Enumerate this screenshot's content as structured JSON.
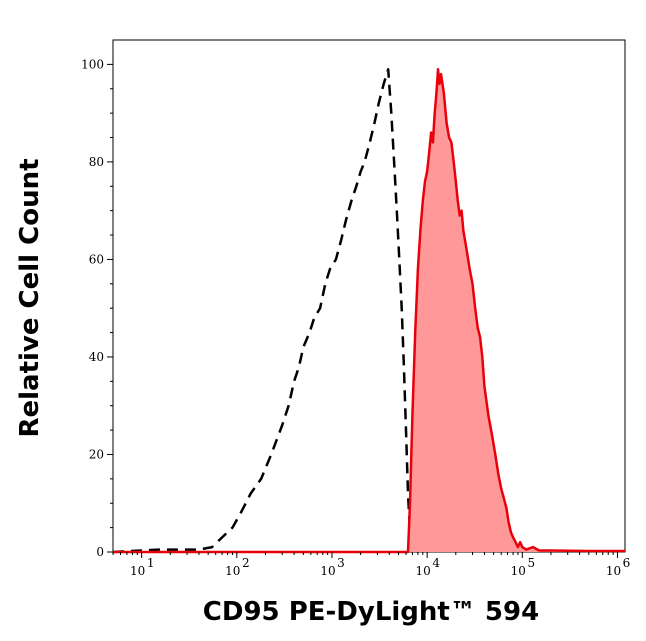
{
  "chart_data": {
    "type": "area",
    "title": "",
    "xlabel": "CD95 PE-DyLight™ 594",
    "ylabel": "Relative Cell Count",
    "x_scale": "log10",
    "xlim": [
      5,
      1200000
    ],
    "ylim": [
      0,
      105
    ],
    "y_ticks": [
      {
        "value": 0,
        "label": "0"
      },
      {
        "value": 20,
        "label": "20"
      },
      {
        "value": 40,
        "label": "40"
      },
      {
        "value": 60,
        "label": "60"
      },
      {
        "value": 80,
        "label": "80"
      },
      {
        "value": 100,
        "label": "100"
      }
    ],
    "x_ticks": [
      {
        "value": 10,
        "base": "10",
        "exp": "1"
      },
      {
        "value": 100,
        "base": "10",
        "exp": "2"
      },
      {
        "value": 1000,
        "base": "10",
        "exp": "3"
      },
      {
        "value": 10000,
        "base": "10",
        "exp": "4"
      },
      {
        "value": 100000,
        "base": "10",
        "exp": "5"
      },
      {
        "value": 1000000,
        "base": "10",
        "exp": "6"
      }
    ],
    "grid": false,
    "legend": "none",
    "series": [
      {
        "style": "dashed",
        "color": "#000000",
        "points": [
          [
            5,
            0
          ],
          [
            15,
            0.5
          ],
          [
            40,
            0.5
          ],
          [
            55,
            1
          ],
          [
            70,
            3
          ],
          [
            90,
            5
          ],
          [
            110,
            8
          ],
          [
            140,
            12
          ],
          [
            180,
            15
          ],
          [
            230,
            20
          ],
          [
            300,
            26
          ],
          [
            350,
            30
          ],
          [
            400,
            35
          ],
          [
            450,
            38
          ],
          [
            500,
            42
          ],
          [
            580,
            45
          ],
          [
            650,
            48
          ],
          [
            750,
            50
          ],
          [
            850,
            55
          ],
          [
            950,
            58
          ],
          [
            1100,
            60
          ],
          [
            1250,
            64
          ],
          [
            1400,
            68
          ],
          [
            1600,
            72
          ],
          [
            1800,
            75
          ],
          [
            2000,
            78
          ],
          [
            2200,
            80
          ],
          [
            2500,
            84
          ],
          [
            2800,
            88
          ],
          [
            3100,
            92
          ],
          [
            3500,
            96
          ],
          [
            3900,
            99
          ],
          [
            4200,
            90
          ],
          [
            4500,
            80
          ],
          [
            4800,
            70
          ],
          [
            5100,
            60
          ],
          [
            5400,
            50
          ],
          [
            5700,
            38
          ],
          [
            6000,
            25
          ],
          [
            6300,
            12
          ],
          [
            6600,
            4
          ],
          [
            7000,
            1
          ],
          [
            8000,
            0
          ]
        ]
      },
      {
        "style": "filled",
        "color": "#e8000b",
        "fill": "#ff9999",
        "points": [
          [
            5,
            0
          ],
          [
            5800,
            0
          ],
          [
            6300,
            0
          ],
          [
            6600,
            10
          ],
          [
            7000,
            28
          ],
          [
            7500,
            45
          ],
          [
            8000,
            58
          ],
          [
            8500,
            66
          ],
          [
            9000,
            72
          ],
          [
            9500,
            76
          ],
          [
            10000,
            78
          ],
          [
            10500,
            82
          ],
          [
            11000,
            86
          ],
          [
            11500,
            84
          ],
          [
            12000,
            90
          ],
          [
            12500,
            94
          ],
          [
            13000,
            99
          ],
          [
            13500,
            96
          ],
          [
            14000,
            98
          ],
          [
            15000,
            94
          ],
          [
            16000,
            88
          ],
          [
            17000,
            85
          ],
          [
            18000,
            84
          ],
          [
            19000,
            80
          ],
          [
            20000,
            76
          ],
          [
            21000,
            72
          ],
          [
            22000,
            69
          ],
          [
            23000,
            70
          ],
          [
            24000,
            66
          ],
          [
            26000,
            62
          ],
          [
            28000,
            58
          ],
          [
            30000,
            55
          ],
          [
            32000,
            50
          ],
          [
            34000,
            46
          ],
          [
            36000,
            44
          ],
          [
            38000,
            40
          ],
          [
            40000,
            34
          ],
          [
            44000,
            28
          ],
          [
            48000,
            24
          ],
          [
            52000,
            20
          ],
          [
            56000,
            16
          ],
          [
            60000,
            13
          ],
          [
            64000,
            11
          ],
          [
            68000,
            9
          ],
          [
            72000,
            6
          ],
          [
            76000,
            4
          ],
          [
            80000,
            3
          ],
          [
            85000,
            2
          ],
          [
            90000,
            1
          ],
          [
            95000,
            2
          ],
          [
            100000,
            1
          ],
          [
            110000,
            0.5
          ],
          [
            130000,
            1
          ],
          [
            150000,
            0.3
          ],
          [
            200000,
            0.3
          ],
          [
            500000,
            0.2
          ],
          [
            1200000,
            0.2
          ]
        ]
      }
    ]
  }
}
